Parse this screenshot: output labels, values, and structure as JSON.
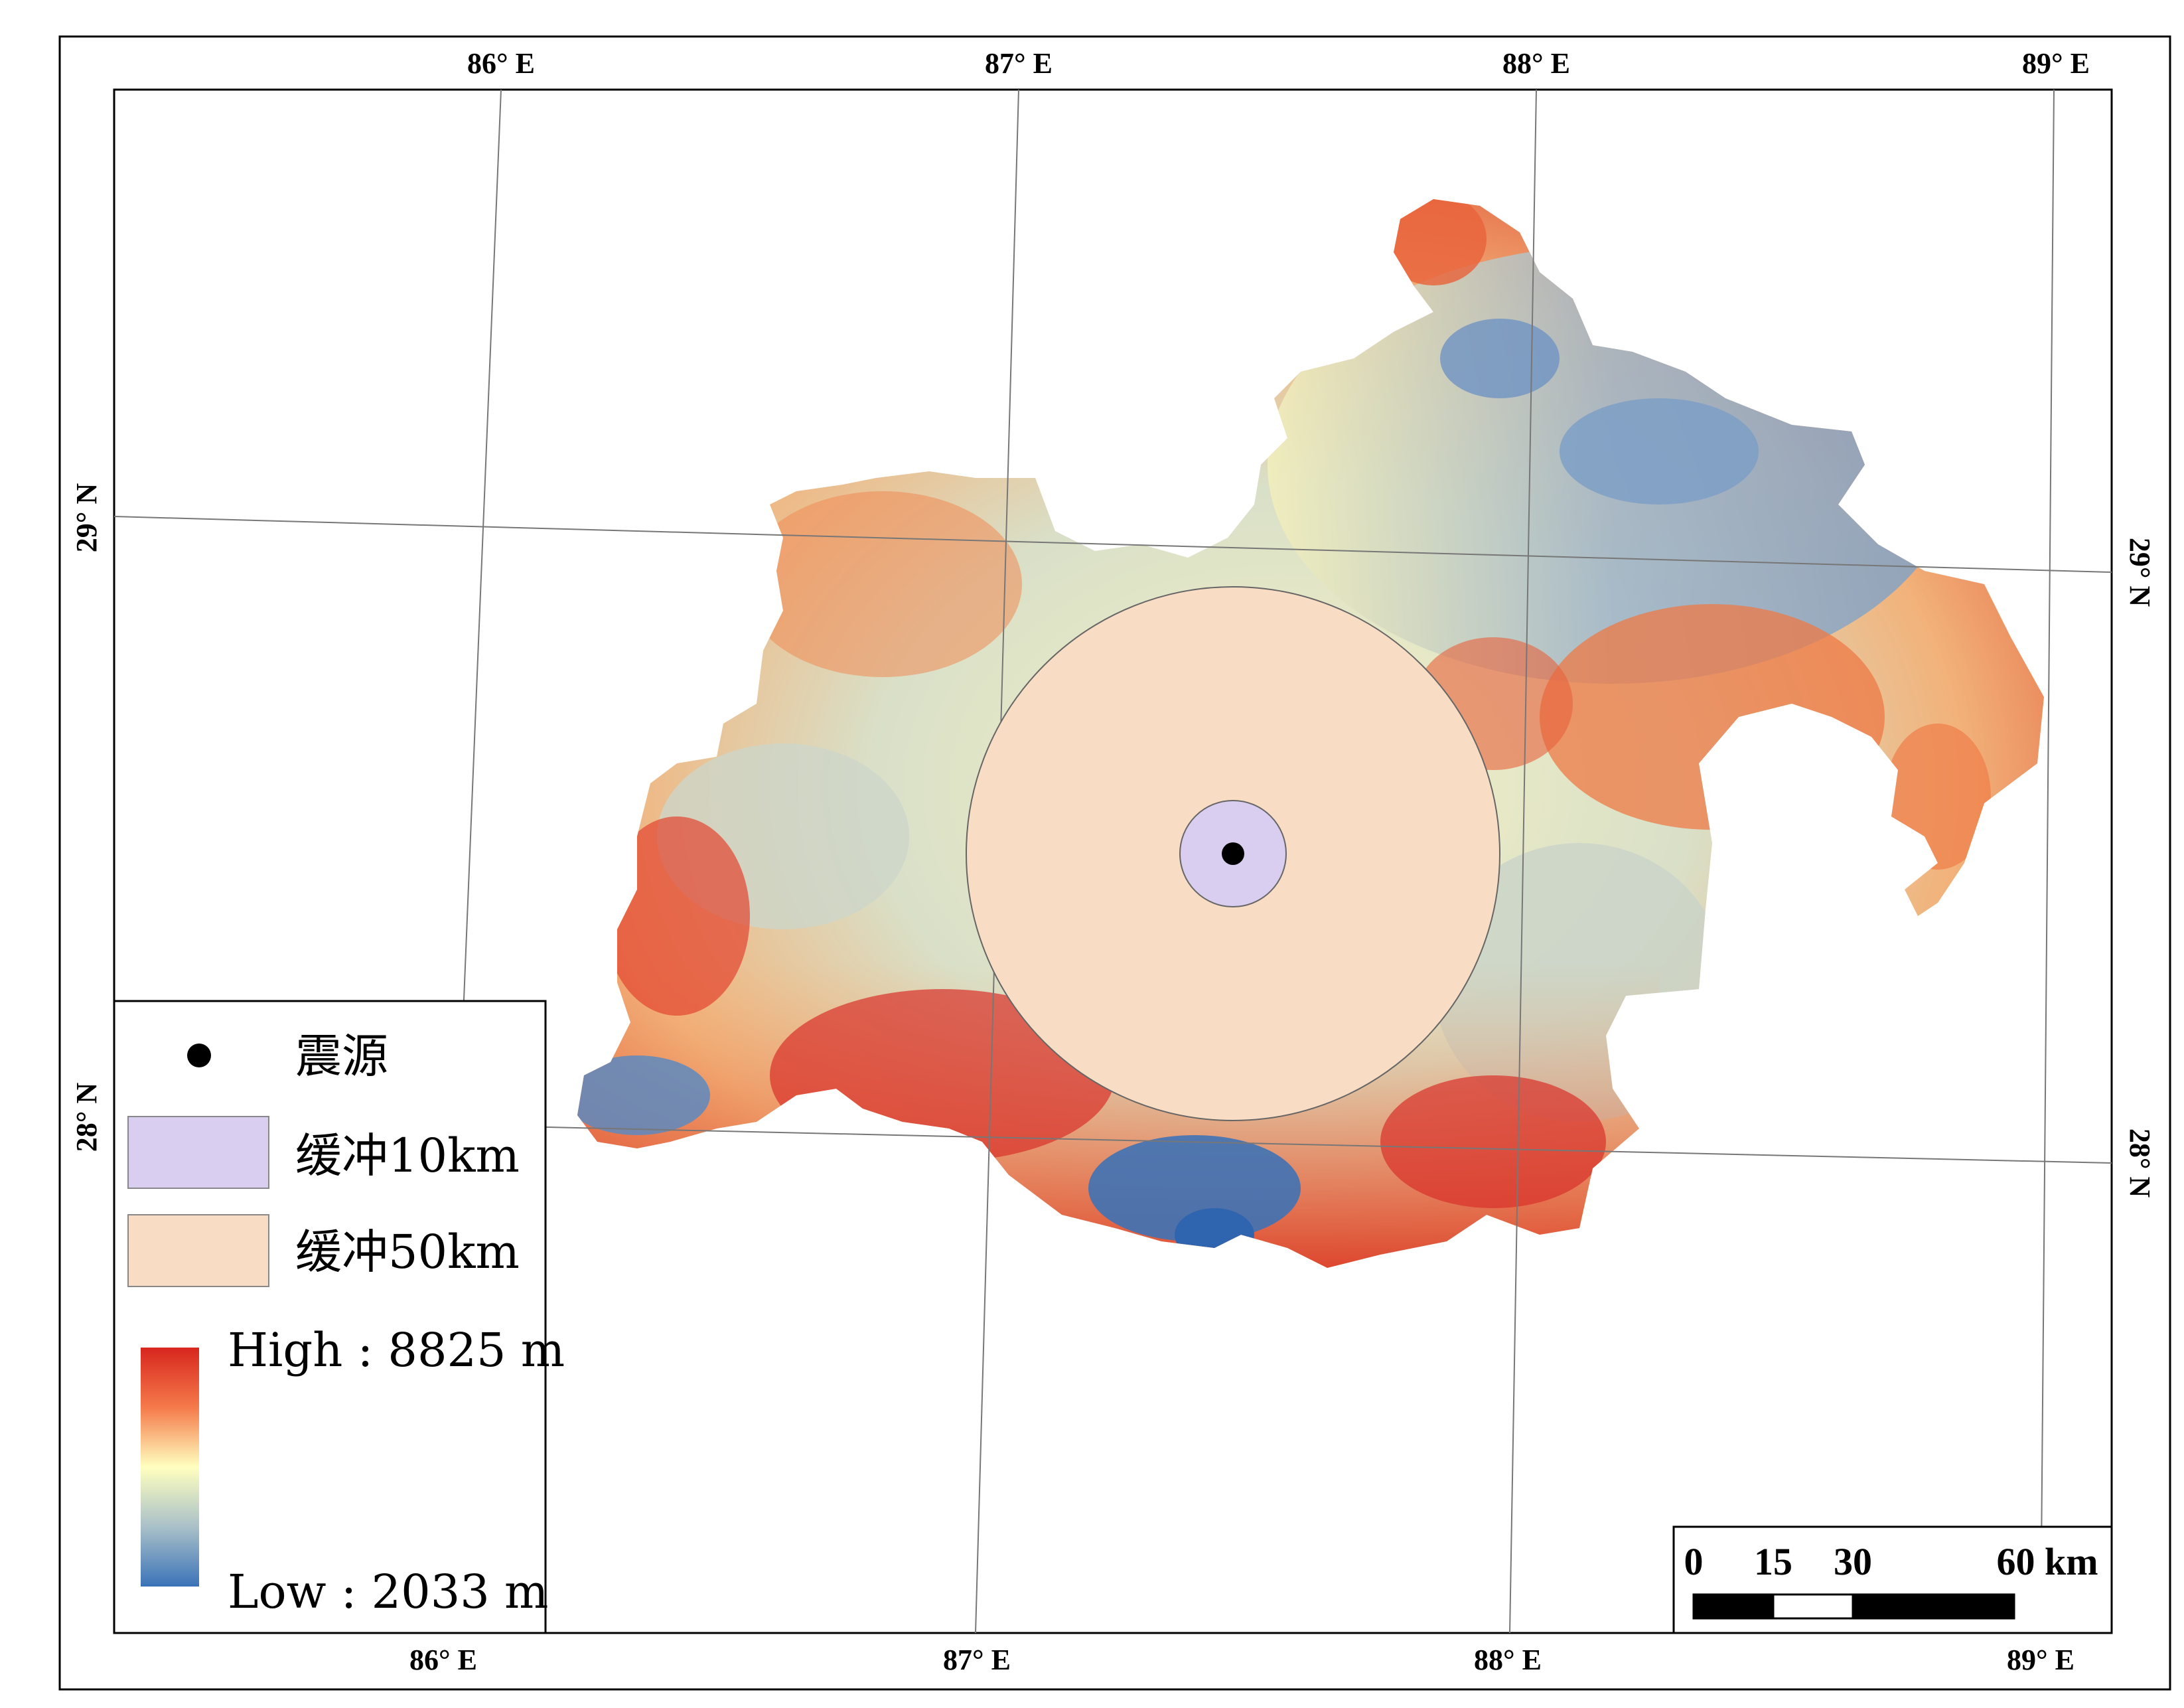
{
  "graticule": {
    "top_labels": [
      "86° E",
      "87° E",
      "88° E",
      "89° E"
    ],
    "bottom_labels": [
      "86° E",
      "87° E",
      "88° E",
      "89° E"
    ],
    "left_labels": [
      "29° N",
      "28° N"
    ],
    "right_labels": [
      "29° N",
      "28° N"
    ]
  },
  "legend": {
    "epicenter_label": "震源",
    "buffer10_label": "缓冲10km",
    "buffer50_label": "缓冲50km",
    "dem_high": "High : 8825 m",
    "dem_low": "Low : 2033 m"
  },
  "scale_bar": {
    "ticks": [
      "0",
      "15",
      "30",
      "60 km"
    ]
  },
  "colors": {
    "buffer10_fill": "#d9cdf0",
    "buffer50_fill": "#f8dcc4",
    "dem_high": "#d7261e",
    "dem_mid": "#ffffbf",
    "dem_low": "#3b73b8",
    "epicenter": "#000000"
  }
}
